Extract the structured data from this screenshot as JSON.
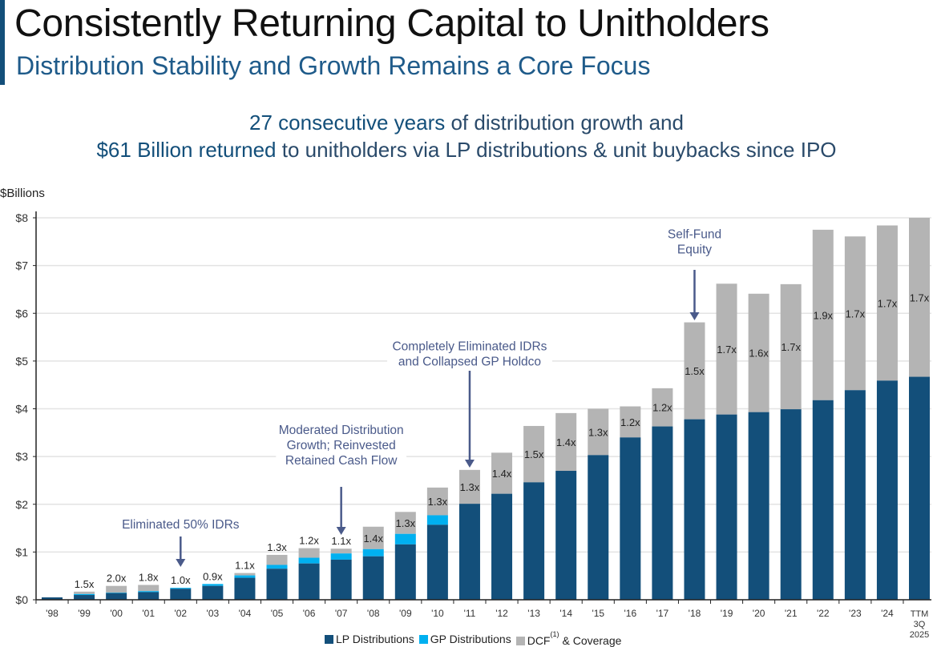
{
  "header": {
    "title": "Consistently Returning Capital to Unitholders",
    "subtitle": "Distribution Stability and Growth Remains a Core Focus",
    "headline1_bold": "27 consecutive years",
    "headline1_rest": " of distribution growth and",
    "headline2_bold": "$61 Billion returned",
    "headline2_rest": " to unitholders via LP distributions & unit buybacks since IPO"
  },
  "colors": {
    "lp": "#134f7a",
    "gp": "#00b0f0",
    "dcf": "#b4b4b4",
    "annotation": "#4a5a8a",
    "accent": "#134f7a"
  },
  "chart_data": {
    "type": "bar",
    "stacked": true,
    "ylabel": "$Billions",
    "ylim": [
      0,
      8
    ],
    "yticks": [
      "$0",
      "$1",
      "$2",
      "$3",
      "$4",
      "$5",
      "$6",
      "$7",
      "$8"
    ],
    "grid": true,
    "categories": [
      "'98",
      "'99",
      "'00",
      "'01",
      "'02",
      "'03",
      "'04",
      "'05",
      "'06",
      "'07",
      "'08",
      "'09",
      "'10",
      "'11",
      "'12",
      "'13",
      "'14",
      "'15",
      "'16",
      "'17",
      "'18",
      "'19",
      "'20",
      "'21",
      "'22",
      "'23",
      "'24",
      "TTM 3Q 2025"
    ],
    "series": [
      {
        "name": "LP Distributions",
        "values": [
          0.05,
          0.1,
          0.14,
          0.16,
          0.23,
          0.29,
          0.46,
          0.65,
          0.76,
          0.84,
          0.91,
          1.16,
          1.57,
          2.01,
          2.22,
          2.46,
          2.7,
          3.03,
          3.4,
          3.63,
          3.78,
          3.88,
          3.93,
          3.99,
          4.18,
          4.39,
          4.59,
          4.67
        ]
      },
      {
        "name": "GP Distributions",
        "values": [
          0,
          0.02,
          0.01,
          0.02,
          0.02,
          0.04,
          0.05,
          0.08,
          0.12,
          0.13,
          0.15,
          0.22,
          0.2,
          0,
          0,
          0,
          0,
          0,
          0,
          0,
          0,
          0,
          0,
          0,
          0,
          0,
          0,
          0
        ]
      },
      {
        "name": "DCF & Coverage",
        "name_main": "DCF",
        "name_note": "(1)",
        "name_tail": "& Coverage",
        "totals": [
          0.05,
          0.17,
          0.29,
          0.31,
          0.25,
          0.33,
          0.56,
          0.94,
          1.08,
          1.07,
          1.53,
          1.84,
          2.35,
          2.72,
          3.08,
          3.64,
          3.91,
          4.0,
          4.05,
          4.43,
          5.81,
          6.62,
          6.41,
          6.61,
          7.75,
          7.61,
          7.84,
          8.0
        ]
      }
    ],
    "coverage_labels": [
      "",
      "1.5x",
      "2.0x",
      "1.8x",
      "1.0x",
      "0.9x",
      "1.1x",
      "1.3x",
      "1.2x",
      "1.1x",
      "1.4x",
      "1.3x",
      "1.3x",
      "1.3x",
      "1.4x",
      "1.5x",
      "1.4x",
      "1.3x",
      "1.2x",
      "1.2x",
      "1.5x",
      "1.7x",
      "1.6x",
      "1.7x",
      "1.9x",
      "1.7x",
      "1.7x",
      "1.7x"
    ],
    "annotations": [
      {
        "text": [
          "Eliminated 50% IDRs"
        ],
        "category": "'02"
      },
      {
        "text": [
          "Moderated Distribution",
          "Growth; Reinvested",
          "Retained Cash Flow"
        ],
        "category": "'07"
      },
      {
        "text": [
          "Completely Eliminated IDRs",
          "and Collapsed GP Holdco"
        ],
        "category": "'11"
      },
      {
        "text": [
          "Self-Fund",
          "Equity"
        ],
        "category": "'18"
      }
    ],
    "legend": "bottom"
  }
}
